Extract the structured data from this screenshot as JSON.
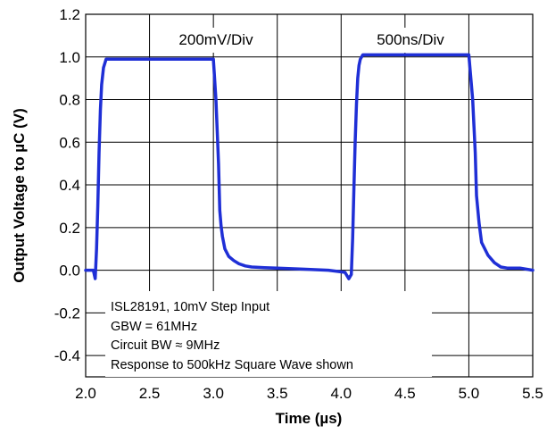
{
  "chart_data": {
    "type": "line",
    "title": "",
    "xlabel": "Time (µs)",
    "ylabel": "Output Voltage to µC (V)",
    "xlim": [
      2.0,
      5.5
    ],
    "ylim": [
      -0.5,
      1.2
    ],
    "xticks": [
      2.0,
      2.5,
      3.0,
      3.5,
      4.0,
      4.5,
      5.0,
      5.5
    ],
    "xtick_labels": [
      "2.0",
      "2.5",
      "3.0",
      "3.5",
      "4.0",
      "4.5",
      "5.0",
      "5.5"
    ],
    "yticks": [
      1.2,
      1.0,
      0.8,
      0.6,
      0.4,
      0.2,
      0.0,
      -0.2,
      -0.4
    ],
    "ytick_labels": [
      "1.2",
      "1.0",
      "0.8",
      "0.6",
      "0.4",
      "0.2",
      "0.0",
      "-0.2",
      "-0.4"
    ],
    "grid": true,
    "series_color": "#1f2fd6",
    "annotations": [
      "200mV/Div",
      "500ns/Div"
    ],
    "notes": [
      "ISL28191, 10mV Step Input",
      "GBW = 61MHz",
      "Circuit BW ≈ 9MHz",
      "Response to 500kHz Square Wave shown"
    ],
    "series": [
      {
        "x": [
          2.0,
          2.06,
          2.075,
          2.085,
          2.095,
          2.105,
          2.115,
          2.125,
          2.14,
          2.16,
          2.18,
          2.25,
          2.5,
          2.75,
          3.0,
          3.02,
          3.04,
          3.05,
          3.06,
          3.07,
          3.09,
          3.12,
          3.16,
          3.2,
          3.25,
          3.3,
          3.4,
          3.5,
          3.7,
          3.9,
          4.03,
          4.06,
          4.08,
          4.09,
          4.1,
          4.11,
          4.12,
          4.13,
          4.14,
          4.15,
          4.17,
          4.2,
          4.25,
          4.5,
          4.75,
          5.0,
          5.03,
          5.05,
          5.06,
          5.08,
          5.1,
          5.15,
          5.2,
          5.25,
          5.3,
          5.35,
          5.4,
          5.5
        ],
        "y": [
          0.0,
          0.0,
          -0.04,
          0.1,
          0.3,
          0.55,
          0.75,
          0.87,
          0.95,
          0.99,
          0.99,
          0.99,
          0.99,
          0.99,
          0.99,
          0.8,
          0.5,
          0.28,
          0.21,
          0.16,
          0.1,
          0.065,
          0.045,
          0.03,
          0.02,
          0.015,
          0.012,
          0.01,
          0.005,
          0.0,
          -0.01,
          -0.04,
          -0.02,
          0.15,
          0.38,
          0.6,
          0.78,
          0.9,
          0.96,
          0.99,
          1.01,
          1.01,
          1.01,
          1.01,
          1.01,
          1.01,
          0.8,
          0.55,
          0.35,
          0.22,
          0.13,
          0.07,
          0.035,
          0.015,
          0.01,
          0.01,
          0.01,
          0.0
        ]
      }
    ]
  }
}
